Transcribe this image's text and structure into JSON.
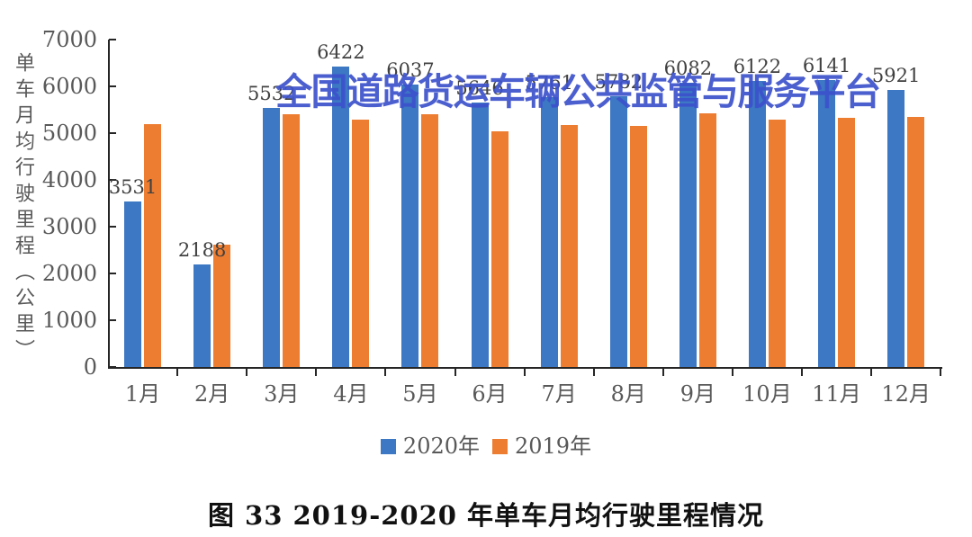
{
  "watermark": {
    "text": "全国道路货运车辆公共监管与服务平台",
    "color": "#3D52CC"
  },
  "caption": "图 33  2019-2020 年单车月均行驶里程情况",
  "chart_data": {
    "type": "bar",
    "title": "图 33  2019-2020 年单车月均行驶里程情况",
    "xlabel": "",
    "ylabel": "单车月均行驶里程（公里）",
    "ylim": [
      0,
      7000
    ],
    "yticks": [
      0,
      1000,
      2000,
      3000,
      4000,
      5000,
      6000,
      7000
    ],
    "grid": false,
    "legend_position": "bottom",
    "categories": [
      "1月",
      "2月",
      "3月",
      "4月",
      "5月",
      "6月",
      "7月",
      "8月",
      "9月",
      "10月",
      "11月",
      "12月"
    ],
    "series": [
      {
        "name": "2020年",
        "color": "#3C78C3",
        "values": [
          3531,
          2188,
          5532,
          6422,
          6037,
          5646,
          5761,
          5782,
          6082,
          6122,
          6141,
          5921
        ],
        "data_labels": [
          "3531",
          "2188",
          "5532",
          "6422",
          "6037",
          "5646",
          "5761",
          "5782",
          "6082",
          "6122",
          "6141",
          "5921"
        ]
      },
      {
        "name": "2019年",
        "color": "#ED7D31",
        "values": [
          5190,
          2610,
          5400,
          5290,
          5400,
          5040,
          5170,
          5150,
          5420,
          5290,
          5330,
          5350
        ],
        "data_labels": []
      }
    ]
  }
}
